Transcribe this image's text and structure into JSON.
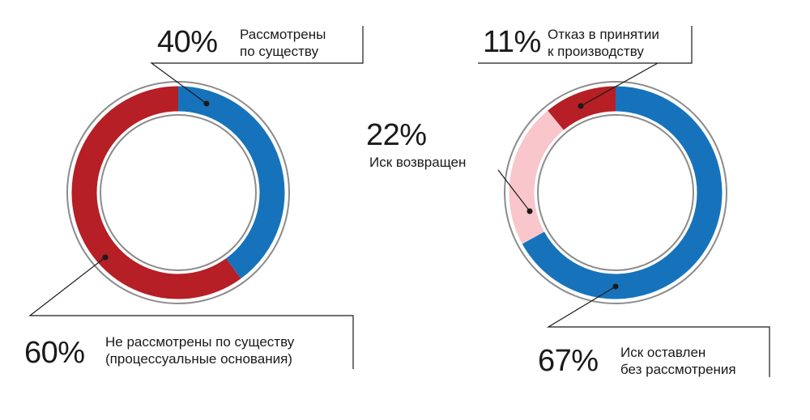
{
  "chart_data": [
    {
      "type": "pie",
      "variant": "donut",
      "slices": [
        {
          "label": "Рассмотрены\nпо существу",
          "value": 40,
          "value_label": "40%",
          "color": "#1673bb"
        },
        {
          "label": "Не рассмотрены по существу\n(процессуальные основания)",
          "value": 60,
          "value_label": "60%",
          "color": "#b51f25"
        }
      ]
    },
    {
      "type": "pie",
      "variant": "donut",
      "slices": [
        {
          "label": "Иск оставлен\nбез рассмотрения",
          "value": 67,
          "value_label": "67%",
          "color": "#1673bb"
        },
        {
          "label": "Иск возвращен",
          "value": 22,
          "value_label": "22%",
          "color": "#f8c6cb"
        },
        {
          "label": "Отказ в принятии\nк производству",
          "value": 11,
          "value_label": "11%",
          "color": "#b51f25"
        }
      ]
    }
  ],
  "style": {
    "ring_outline": "#8c8c8c",
    "leader_line": "#1a1a1a"
  }
}
